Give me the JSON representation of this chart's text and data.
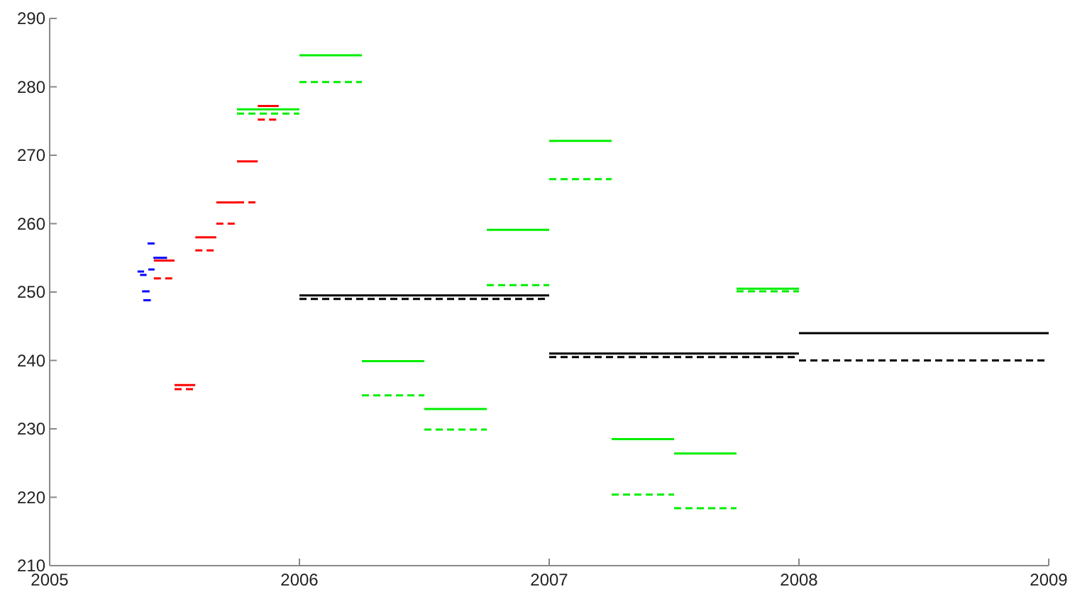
{
  "chart_data": {
    "type": "line",
    "xlim": [
      2005,
      2009
    ],
    "xticks": [
      2005,
      2006,
      2007,
      2008,
      2009
    ],
    "ylim": [
      210,
      290
    ],
    "yticks": [
      210,
      220,
      230,
      240,
      250,
      260,
      270,
      280,
      290
    ],
    "grid": false,
    "marker": "none",
    "series": [
      {
        "color": "#0000ff",
        "line_style": "solid",
        "x": [
          2005.392,
          2005.42
        ],
        "values": [
          257.1,
          257.1
        ]
      },
      {
        "color": "#0000ff",
        "line_style": "solid",
        "x": [
          2005.415,
          2005.47
        ],
        "values": [
          255.0,
          255.0
        ]
      },
      {
        "color": "#0000ff",
        "line_style": "solid",
        "x": [
          2005.395,
          2005.42
        ],
        "values": [
          253.3,
          253.3
        ]
      },
      {
        "color": "#0000ff",
        "line_style": "solid",
        "x": [
          2005.352,
          2005.378
        ],
        "values": [
          253.0,
          253.0
        ]
      },
      {
        "color": "#0000ff",
        "line_style": "solid",
        "x": [
          2005.362,
          2005.388
        ],
        "values": [
          252.5,
          252.5
        ]
      },
      {
        "color": "#0000ff",
        "line_style": "solid",
        "x": [
          2005.37,
          2005.4
        ],
        "values": [
          250.1,
          250.1
        ]
      },
      {
        "color": "#0000ff",
        "line_style": "solid",
        "x": [
          2005.375,
          2005.405
        ],
        "values": [
          248.8,
          248.8
        ]
      },
      {
        "color": "#ff0000",
        "line_style": "solid",
        "x": [
          2005.417,
          2005.5
        ],
        "values": [
          254.6,
          254.6
        ]
      },
      {
        "color": "#ff0000",
        "line_style": "dashed",
        "x": [
          2005.417,
          2005.5
        ],
        "values": [
          252.0,
          252.0
        ]
      },
      {
        "color": "#ff0000",
        "line_style": "solid",
        "x": [
          2005.5,
          2005.583
        ],
        "values": [
          236.4,
          236.4
        ]
      },
      {
        "color": "#ff0000",
        "line_style": "dashed",
        "x": [
          2005.5,
          2005.583
        ],
        "values": [
          235.8,
          235.8
        ]
      },
      {
        "color": "#ff0000",
        "line_style": "solid",
        "x": [
          2005.583,
          2005.667
        ],
        "values": [
          258.0,
          258.0
        ]
      },
      {
        "color": "#ff0000",
        "line_style": "dashed",
        "x": [
          2005.583,
          2005.667
        ],
        "values": [
          256.1,
          256.1
        ]
      },
      {
        "color": "#ff0000",
        "line_style": "solid",
        "x": [
          2005.667,
          2005.75
        ],
        "values": [
          263.1,
          263.1
        ]
      },
      {
        "color": "#ff0000",
        "line_style": "dashed",
        "x": [
          2005.667,
          2005.75
        ],
        "values": [
          260.0,
          260.0
        ]
      },
      {
        "color": "#ff0000",
        "line_style": "solid",
        "x": [
          2005.75,
          2005.833
        ],
        "values": [
          269.1,
          269.1
        ]
      },
      {
        "color": "#ff0000",
        "line_style": "dashed",
        "x": [
          2005.75,
          2005.833
        ],
        "values": [
          263.1,
          263.1
        ]
      },
      {
        "color": "#ff0000",
        "line_style": "solid",
        "x": [
          2005.833,
          2005.917
        ],
        "values": [
          277.2,
          277.2
        ]
      },
      {
        "color": "#ff0000",
        "line_style": "dashed",
        "x": [
          2005.833,
          2005.917
        ],
        "values": [
          275.2,
          275.2
        ]
      },
      {
        "color": "#00ee00",
        "line_style": "solid",
        "x": [
          2005.75,
          2006.0
        ],
        "values": [
          276.7,
          276.7
        ]
      },
      {
        "color": "#00ee00",
        "line_style": "dashed",
        "x": [
          2005.75,
          2006.0
        ],
        "values": [
          276.1,
          276.1
        ]
      },
      {
        "color": "#00ee00",
        "line_style": "solid",
        "x": [
          2006.0,
          2006.25
        ],
        "values": [
          284.6,
          284.6
        ]
      },
      {
        "color": "#00ee00",
        "line_style": "dashed",
        "x": [
          2006.0,
          2006.25
        ],
        "values": [
          280.7,
          280.7
        ]
      },
      {
        "color": "#00ee00",
        "line_style": "solid",
        "x": [
          2006.25,
          2006.5
        ],
        "values": [
          239.9,
          239.9
        ]
      },
      {
        "color": "#00ee00",
        "line_style": "dashed",
        "x": [
          2006.25,
          2006.5
        ],
        "values": [
          234.9,
          234.9
        ]
      },
      {
        "color": "#00ee00",
        "line_style": "solid",
        "x": [
          2006.5,
          2006.75
        ],
        "values": [
          232.9,
          232.9
        ]
      },
      {
        "color": "#00ee00",
        "line_style": "dashed",
        "x": [
          2006.5,
          2006.75
        ],
        "values": [
          229.9,
          229.9
        ]
      },
      {
        "color": "#00ee00",
        "line_style": "solid",
        "x": [
          2006.75,
          2007.0
        ],
        "values": [
          259.1,
          259.1
        ]
      },
      {
        "color": "#00ee00",
        "line_style": "dashed",
        "x": [
          2006.75,
          2007.0
        ],
        "values": [
          251.0,
          251.0
        ]
      },
      {
        "color": "#00ee00",
        "line_style": "solid",
        "x": [
          2007.0,
          2007.25
        ],
        "values": [
          272.1,
          272.1
        ]
      },
      {
        "color": "#00ee00",
        "line_style": "dashed",
        "x": [
          2007.0,
          2007.25
        ],
        "values": [
          266.5,
          266.5
        ]
      },
      {
        "color": "#00ee00",
        "line_style": "solid",
        "x": [
          2007.25,
          2007.5
        ],
        "values": [
          228.5,
          228.5
        ]
      },
      {
        "color": "#00ee00",
        "line_style": "dashed",
        "x": [
          2007.25,
          2007.5
        ],
        "values": [
          220.4,
          220.4
        ]
      },
      {
        "color": "#00ee00",
        "line_style": "solid",
        "x": [
          2007.5,
          2007.75
        ],
        "values": [
          226.4,
          226.4
        ]
      },
      {
        "color": "#00ee00",
        "line_style": "dashed",
        "x": [
          2007.5,
          2007.75
        ],
        "values": [
          218.4,
          218.4
        ]
      },
      {
        "color": "#00ee00",
        "line_style": "solid",
        "x": [
          2007.75,
          2008.0
        ],
        "values": [
          250.5,
          250.5
        ]
      },
      {
        "color": "#00ee00",
        "line_style": "dashed",
        "x": [
          2007.75,
          2008.0
        ],
        "values": [
          250.1,
          250.1
        ]
      },
      {
        "color": "#000000",
        "line_style": "solid",
        "x": [
          2006.0,
          2007.0
        ],
        "values": [
          249.5,
          249.5
        ]
      },
      {
        "color": "#000000",
        "line_style": "dashed",
        "x": [
          2006.0,
          2007.0
        ],
        "values": [
          249.0,
          249.0
        ]
      },
      {
        "color": "#000000",
        "line_style": "solid",
        "x": [
          2007.0,
          2008.0
        ],
        "values": [
          241.0,
          241.0
        ]
      },
      {
        "color": "#000000",
        "line_style": "dashed",
        "x": [
          2007.0,
          2008.0
        ],
        "values": [
          240.5,
          240.5
        ]
      },
      {
        "color": "#000000",
        "line_style": "solid",
        "x": [
          2008.0,
          2009.0
        ],
        "values": [
          244.0,
          244.0
        ]
      },
      {
        "color": "#000000",
        "line_style": "dashed",
        "x": [
          2008.0,
          2009.0
        ],
        "values": [
          240.0,
          240.0
        ]
      }
    ]
  }
}
